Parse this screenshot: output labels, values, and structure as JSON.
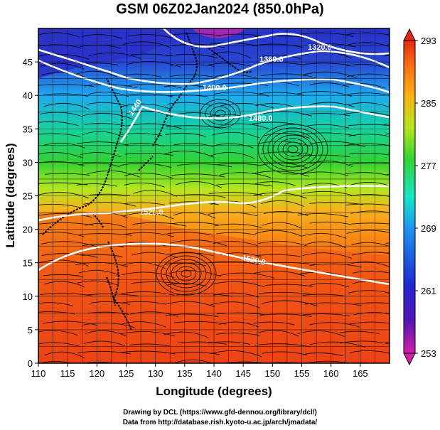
{
  "title": "GSM 06Z02Jan2024 (850.0hPa)",
  "axes": {
    "xlabel": "Longitude (degrees)",
    "ylabel": "Latitude  (degrees)",
    "xlim": [
      110,
      170
    ],
    "ylim": [
      0,
      50
    ],
    "xticks": [
      110,
      115,
      120,
      125,
      130,
      135,
      140,
      145,
      150,
      155,
      160,
      165
    ],
    "yticks": [
      0,
      5,
      10,
      15,
      20,
      25,
      30,
      35,
      40,
      45
    ]
  },
  "colorbar": {
    "ticks": [
      "293",
      "285",
      "277",
      "269",
      "261",
      "253"
    ],
    "range": [
      253,
      293
    ],
    "colors": [
      "#d21ea8",
      "#5a14b4",
      "#1e28d2",
      "#1e96f0",
      "#14e6c8",
      "#32d232",
      "#b4e61e",
      "#fab414",
      "#fa6e14",
      "#e62814"
    ]
  },
  "contours": {
    "labels": [
      "1320.0",
      "1360.0",
      "1400.0",
      "1440",
      "1480.0",
      "1520.0",
      "1520.0"
    ]
  },
  "credits": {
    "line1": "Drawing by DCL (https://www.gfd-dennou.org/library/dcl/)",
    "line2": "Data from http://database.rish.kyoto-u.ac.jp/arch/jmadata/"
  }
}
